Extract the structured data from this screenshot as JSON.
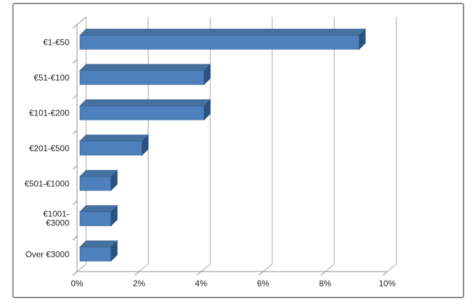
{
  "window": {
    "background": "#FFFFFF",
    "chart_border_color": "#8C8C8C"
  },
  "chart_data": {
    "type": "bar",
    "orientation": "horizontal",
    "style": "3d",
    "title": "",
    "xlabel": "",
    "ylabel": "",
    "categories": [
      "€1-€50",
      "€51-€100",
      "€101-€200",
      "€201-€500",
      "€501-€1000",
      "€1001-€3000",
      "Over €3000"
    ],
    "category_label_lines": [
      [
        "€1-€50"
      ],
      [
        "€51-€100"
      ],
      [
        "€101-€200"
      ],
      [
        "€201-€500"
      ],
      [
        "€501-€1000"
      ],
      [
        "€1001-",
        "€3000"
      ],
      [
        "Over €3000"
      ]
    ],
    "values": [
      9,
      4,
      4,
      2,
      1,
      1,
      1
    ],
    "value_unit": "%",
    "xlim": [
      0,
      10
    ],
    "x_tick_step": 2,
    "x_tick_labels": [
      "0%",
      "2%",
      "4%",
      "6%",
      "8%",
      "10%"
    ],
    "grid": true,
    "legend": false,
    "colors": {
      "bar_front": "#4E80BC",
      "bar_top": "#44719E",
      "bar_side": "#2E527E",
      "bar_edge": "#36608F",
      "gridline": "#A6A6A6",
      "axis": "#8C8C8C",
      "text": "#212121",
      "plot_background": "#FFFFFF"
    }
  }
}
